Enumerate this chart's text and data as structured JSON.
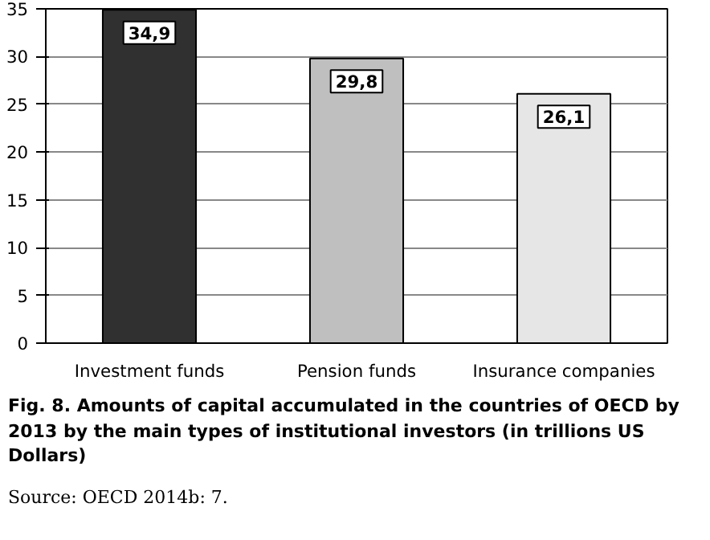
{
  "chart_data": {
    "type": "bar",
    "categories": [
      "Investment funds",
      "Pension funds",
      "Insurance companies"
    ],
    "values": [
      34.9,
      29.8,
      26.1
    ],
    "colors": [
      "#303030",
      "#bfbfbf",
      "#e6e6e6"
    ],
    "value_labels": [
      "34,9",
      "29,8",
      "26,1"
    ],
    "ylim": [
      0,
      35
    ],
    "yticks": [
      0,
      5,
      10,
      15,
      20,
      25,
      30,
      35
    ],
    "grid": "y",
    "annotations": [
      "Fig. 8. Amounts of capital accumulated in the countries of OECD by 2013 by the main types of institutional investors (in trillions US Dollars)",
      "Source: OECD 2014b: 7."
    ]
  }
}
